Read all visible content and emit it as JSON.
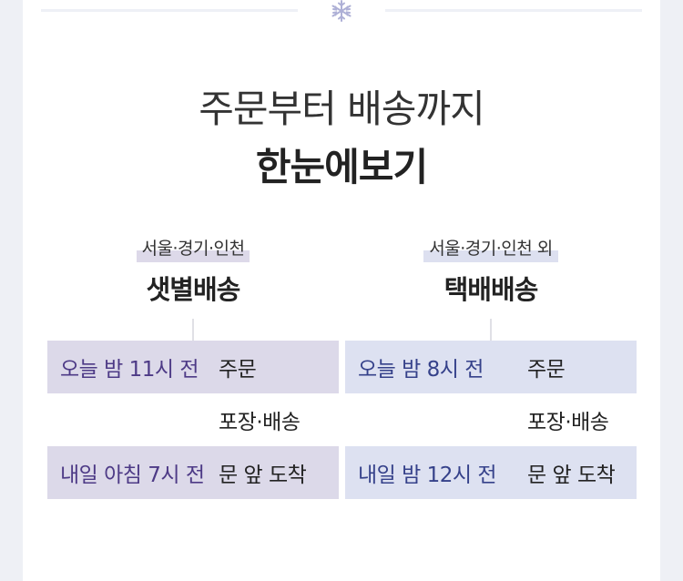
{
  "header": {
    "title_line1": "주문부터 배송까지",
    "title_line2": "한눈에보기"
  },
  "columns": [
    {
      "region": "서울·경기·인천",
      "method": "샛별배송",
      "rows": [
        {
          "time": "오늘 밤 11시 전",
          "step": "주문"
        },
        {
          "time": "",
          "step": "포장·배송"
        },
        {
          "time": "내일 아침 7시 전",
          "step": "문 앞 도착"
        }
      ]
    },
    {
      "region": "서울·경기·인천 외",
      "method": "택배배송",
      "rows": [
        {
          "time": "오늘 밤 8시 전",
          "step": "주문"
        },
        {
          "time": "",
          "step": "포장·배송"
        },
        {
          "time": "내일 밤 12시 전",
          "step": "문 앞 도착"
        }
      ]
    }
  ],
  "colors": {
    "dawn_accent": "#4d3a86",
    "parcel_accent": "#35418a",
    "dawn_shade": "#dcd9e9",
    "parcel_shade": "#dde1f1"
  },
  "icons": {
    "divider": "snowflake-icon"
  }
}
